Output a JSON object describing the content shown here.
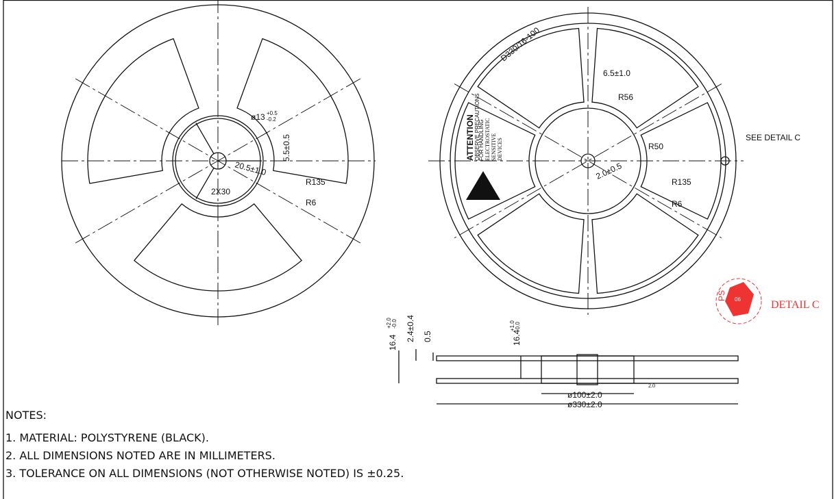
{
  "left_view": {
    "bore": {
      "main": "ø13",
      "upper": "+0.5",
      "lower": "-0.2"
    },
    "slot": "5.5±0.5",
    "hub": "20.5±1.0",
    "angle": "2X30",
    "outer_radius": "R135",
    "corner_radius": "R6"
  },
  "right_view": {
    "label": "D330/16-100",
    "spoke_width": "6.5±1.0",
    "r_inner": "R56",
    "r_hub": "R50",
    "detail_ref": "SEE DETAIL C",
    "key": "2.0±0.5",
    "outer_radius": "R135",
    "corner_radius": "R6",
    "esd": {
      "title": "ATTENTION",
      "line1": "OBSERVE PRECAUTIONS",
      "line2": "FOR HANDLING",
      "line3": "ELECTROSTATIC",
      "line4": "SENSITIVE",
      "line5": "DEVICES"
    }
  },
  "detail": {
    "material_code": "PS",
    "recycle_number": "06",
    "label": "DETAIL C"
  },
  "section": {
    "overall_width": {
      "main": "16.4",
      "upper": "+2.0",
      "lower": "-0.0"
    },
    "flange_thickness": "2.4±0.4",
    "gap": "0.5",
    "inner_width": {
      "main": "16.4",
      "upper": "+1.0",
      "lower": "-0.0"
    },
    "hub_diameter": "ø100±2.0",
    "reel_diameter": "ø330±2.0",
    "edge": "2.0"
  },
  "notes": {
    "title": "NOTES:",
    "items": [
      "1. MATERIAL: POLYSTYRENE (BLACK).",
      "2. ALL DIMENSIONS NOTED ARE IN MILLIMETERS.",
      "3. TOLERANCE ON ALL DIMENSIONS (NOT OTHERWISE NOTED) IS ±0.25."
    ]
  }
}
